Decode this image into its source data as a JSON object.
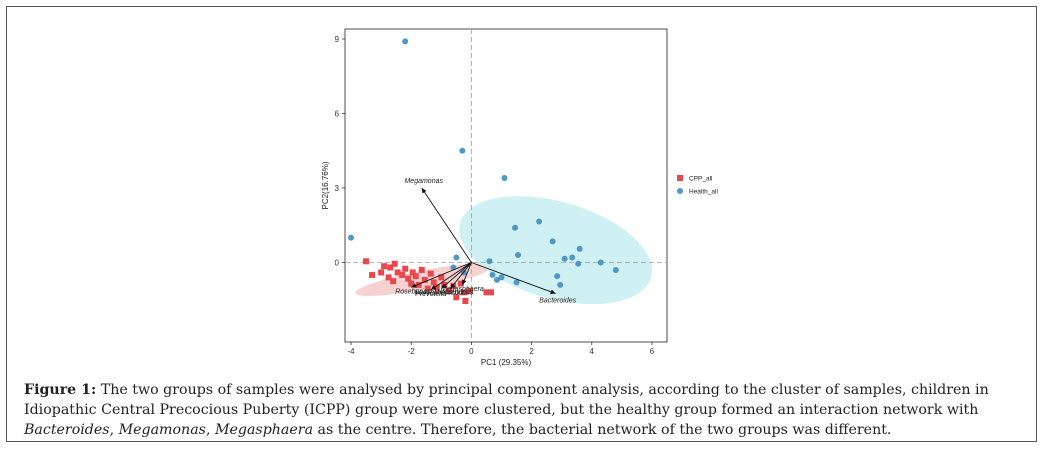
{
  "figure": {
    "label": "Figure 1:",
    "caption_parts": [
      {
        "text": " The two groups of samples were analysed by principal component analysis, according to the cluster of samples, children in Idiopathic Central Precocious Puberty (ICPP) group were more clustered, but the healthy group formed an interaction network with ",
        "italic": false
      },
      {
        "text": "Bacteroides",
        "italic": true
      },
      {
        "text": ", ",
        "italic": false
      },
      {
        "text": "Megamonas",
        "italic": true
      },
      {
        "text": ", ",
        "italic": false
      },
      {
        "text": "Megasphaera",
        "italic": true
      },
      {
        "text": " as the centre. Therefore, the bacterial network of the two groups was different.",
        "italic": false
      }
    ]
  },
  "chart_data": {
    "type": "scatter",
    "xlabel": "PC1 (29.35%)",
    "ylabel": "PC2(16.76%)",
    "xlim": [
      -4.2,
      6.5
    ],
    "ylim": [
      -3.2,
      9.4
    ],
    "xticks": [
      -4,
      -2,
      0,
      2,
      4,
      6
    ],
    "yticks": [
      0,
      3,
      6,
      9
    ],
    "grid": false,
    "reference_lines": {
      "x": 0,
      "y": 0
    },
    "legend_position": "right",
    "series": [
      {
        "name": "CPP_all",
        "marker": "square",
        "color": "#e8474c",
        "ellipse": {
          "center": [
            -1.6,
            -0.7
          ],
          "rx": 2.3,
          "ry": 0.38,
          "angle_deg": -11,
          "fill": "#f7c9c9"
        },
        "points": [
          [
            -3.5,
            0.05
          ],
          [
            -3.3,
            -0.5
          ],
          [
            -3.0,
            -0.4
          ],
          [
            -2.9,
            -0.15
          ],
          [
            -2.75,
            -0.6
          ],
          [
            -2.7,
            -0.2
          ],
          [
            -2.6,
            -0.75
          ],
          [
            -2.55,
            -0.05
          ],
          [
            -2.45,
            -0.4
          ],
          [
            -2.3,
            -0.5
          ],
          [
            -2.2,
            -0.25
          ],
          [
            -2.1,
            -0.65
          ],
          [
            -2.0,
            -0.85
          ],
          [
            -1.95,
            -0.4
          ],
          [
            -1.85,
            -0.55
          ],
          [
            -1.75,
            -0.9
          ],
          [
            -1.65,
            -0.3
          ],
          [
            -1.55,
            -0.7
          ],
          [
            -1.45,
            -1.05
          ],
          [
            -1.35,
            -0.45
          ],
          [
            -1.25,
            -0.8
          ],
          [
            -1.15,
            -1.0
          ],
          [
            -1.0,
            -0.6
          ],
          [
            -0.9,
            -0.9
          ],
          [
            -0.75,
            -1.15
          ],
          [
            -0.6,
            -0.95
          ],
          [
            -0.5,
            -1.4
          ],
          [
            -0.35,
            -0.85
          ],
          [
            -0.25,
            -1.2
          ],
          [
            -0.2,
            -1.55
          ],
          [
            -0.05,
            -1.15
          ],
          [
            0.5,
            -1.2
          ],
          [
            0.65,
            -1.2
          ]
        ]
      },
      {
        "name": "Health_all",
        "marker": "circle",
        "color": "#4f98c6",
        "ellipse": {
          "center": [
            2.8,
            0.5
          ],
          "rx": 3.3,
          "ry": 1.95,
          "angle_deg": 16,
          "fill": "#c8eef2"
        },
        "points": [
          [
            -4.0,
            1.0
          ],
          [
            -2.2,
            8.9
          ],
          [
            -0.3,
            4.5
          ],
          [
            1.1,
            3.4
          ],
          [
            2.25,
            1.65
          ],
          [
            1.45,
            1.4
          ],
          [
            2.7,
            0.85
          ],
          [
            3.6,
            0.55
          ],
          [
            3.1,
            0.15
          ],
          [
            3.35,
            0.2
          ],
          [
            3.55,
            -0.05
          ],
          [
            4.3,
            0.0
          ],
          [
            4.8,
            -0.3
          ],
          [
            2.85,
            -0.55
          ],
          [
            2.95,
            -0.9
          ],
          [
            1.55,
            0.3
          ],
          [
            0.6,
            0.05
          ],
          [
            1.0,
            -0.6
          ],
          [
            1.5,
            -0.8
          ],
          [
            0.7,
            -0.5
          ],
          [
            0.85,
            -0.7
          ],
          [
            -0.5,
            0.2
          ],
          [
            -0.6,
            -0.2
          ],
          [
            -0.25,
            -0.4
          ]
        ]
      }
    ],
    "vectors": [
      {
        "label": "Megamonas",
        "x": -1.65,
        "y": 3.0
      },
      {
        "label": "Bacteroides",
        "x": 2.8,
        "y": -1.25
      },
      {
        "label": "Roseburia",
        "x": -2.0,
        "y": -1.0
      },
      {
        "label": "Prevotella",
        "x": -1.35,
        "y": -1.1
      },
      {
        "label": "Faecalibacterium",
        "x": -1.0,
        "y": -1.05
      },
      {
        "label": "Ruminococcus",
        "x": -0.7,
        "y": -1.05
      },
      {
        "label": "Megasphaera",
        "x": -0.3,
        "y": -0.9
      }
    ]
  }
}
